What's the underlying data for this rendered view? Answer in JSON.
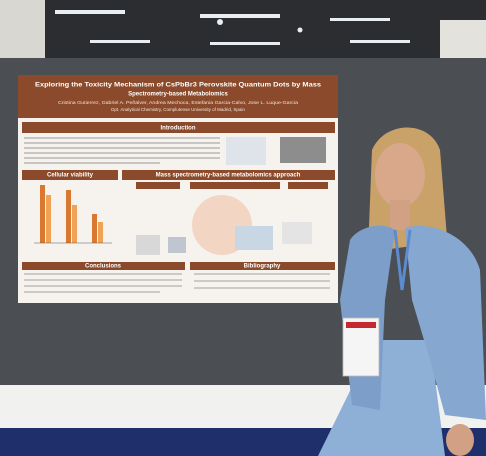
{
  "poster": {
    "title_lines": [
      "Exploring the Toxicity Mechanism of CsPbBr3 Perovskite Quantum Dots by Mass",
      "Spectrometry-based Metabolomics"
    ],
    "authors": "Cristina Gutierrez, Gabriel A. Peñalver, Andrea Mechoca, Estefania Garcia-Calvo, Jose L. Luque-Garcia",
    "affiliation": "Dpt. Analytical Chemistry, Complutense University of Madrid, Spain",
    "sections": [
      "Introduction",
      "Cellular viability",
      "Mass spectrometry-based metabolomics approach",
      "Conclusions",
      "Bibliography"
    ]
  }
}
